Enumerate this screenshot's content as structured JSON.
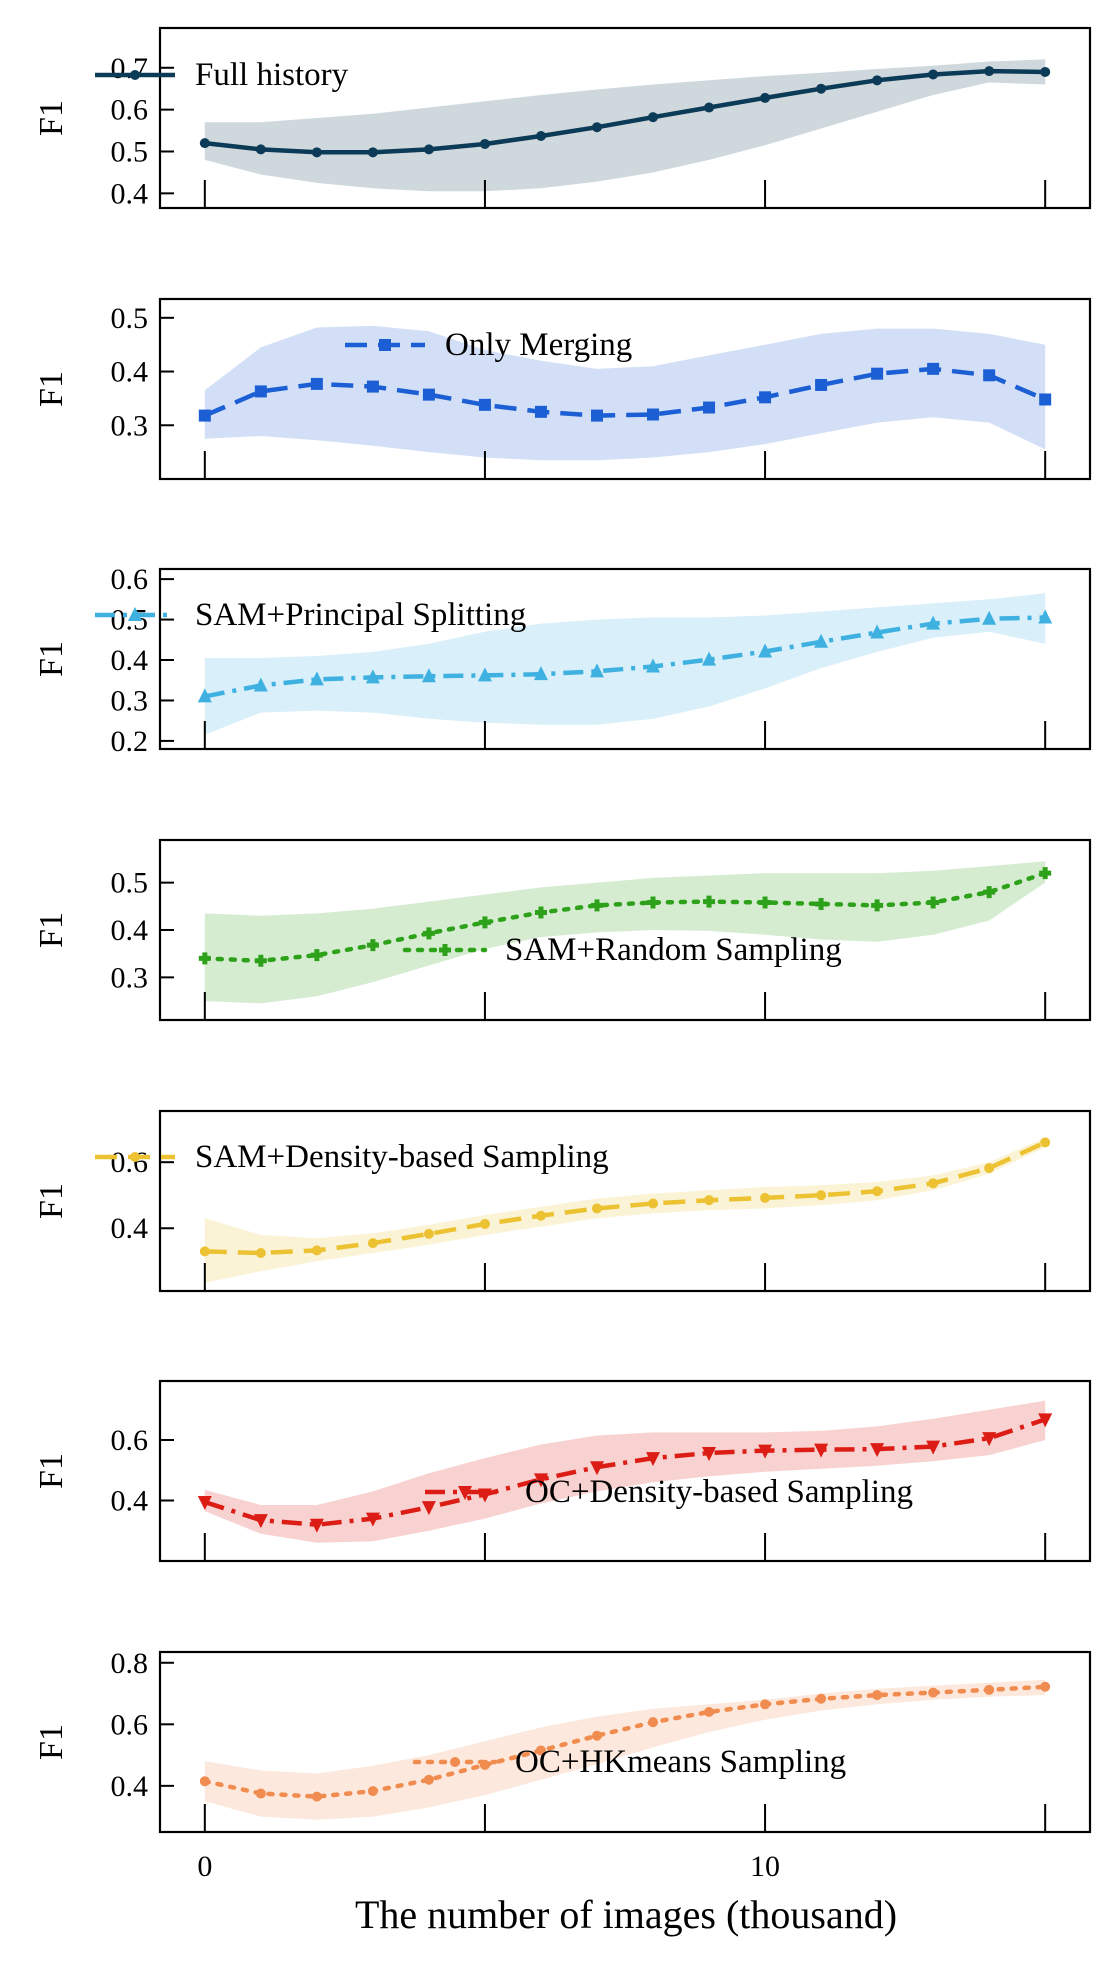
{
  "figure": {
    "xlabel": "The number of images (thousand)",
    "ylabel": "F1"
  },
  "chart_data": [
    {
      "type": "line",
      "series": [
        {
          "name": "Full history",
          "color": "#0c3b57",
          "marker": "circle",
          "linestyle": "solid"
        }
      ],
      "x": [
        0,
        1,
        2,
        3,
        4,
        5,
        6,
        7,
        8,
        9,
        10,
        11,
        12,
        13,
        14,
        15
      ],
      "values": [
        0.52,
        0.505,
        0.498,
        0.498,
        0.505,
        0.518,
        0.537,
        0.558,
        0.582,
        0.605,
        0.628,
        0.65,
        0.67,
        0.684,
        0.692,
        0.69
      ],
      "lower": [
        0.48,
        0.445,
        0.425,
        0.412,
        0.405,
        0.405,
        0.412,
        0.428,
        0.45,
        0.48,
        0.515,
        0.555,
        0.595,
        0.635,
        0.665,
        0.66
      ],
      "upper": [
        0.57,
        0.57,
        0.58,
        0.59,
        0.605,
        0.62,
        0.635,
        0.648,
        0.66,
        0.67,
        0.68,
        0.688,
        0.697,
        0.705,
        0.715,
        0.72
      ],
      "xlim": [
        -0.8,
        15.8
      ],
      "ylim": [
        0.365,
        0.795
      ],
      "yticks": [
        0.4,
        0.5,
        0.6,
        0.7
      ],
      "ytick_labels": [
        "0.4",
        "0.5",
        "0.6",
        "0.7"
      ],
      "legend": "top-left"
    },
    {
      "type": "line",
      "series": [
        {
          "name": "Only Merging",
          "color": "#1c5fd4",
          "marker": "square",
          "linestyle": "dashed"
        }
      ],
      "x": [
        0,
        1,
        2,
        3,
        4,
        5,
        6,
        7,
        8,
        9,
        10,
        11,
        12,
        13,
        14,
        15
      ],
      "values": [
        0.318,
        0.363,
        0.377,
        0.372,
        0.357,
        0.338,
        0.325,
        0.318,
        0.32,
        0.333,
        0.352,
        0.375,
        0.396,
        0.405,
        0.393,
        0.348
      ],
      "lower": [
        0.275,
        0.28,
        0.272,
        0.262,
        0.25,
        0.24,
        0.235,
        0.235,
        0.24,
        0.25,
        0.265,
        0.285,
        0.305,
        0.315,
        0.305,
        0.255
      ],
      "upper": [
        0.365,
        0.445,
        0.482,
        0.485,
        0.475,
        0.44,
        0.42,
        0.405,
        0.41,
        0.43,
        0.45,
        0.47,
        0.48,
        0.48,
        0.47,
        0.45
      ],
      "xlim": [
        -0.8,
        15.8
      ],
      "ylim": [
        0.2,
        0.535
      ],
      "yticks": [
        0.3,
        0.4,
        0.5
      ],
      "ytick_labels": [
        "0.3",
        "0.4",
        "0.5"
      ],
      "legend": "top-center"
    },
    {
      "type": "line",
      "series": [
        {
          "name": "SAM+Principal Splitting",
          "color": "#3fb1e0",
          "marker": "triangle-up",
          "linestyle": "dashdot"
        }
      ],
      "x": [
        0,
        1,
        2,
        3,
        4,
        5,
        6,
        7,
        8,
        9,
        10,
        11,
        12,
        13,
        14,
        15
      ],
      "values": [
        0.31,
        0.337,
        0.352,
        0.357,
        0.36,
        0.362,
        0.365,
        0.372,
        0.384,
        0.401,
        0.421,
        0.445,
        0.468,
        0.49,
        0.502,
        0.505
      ],
      "lower": [
        0.215,
        0.27,
        0.275,
        0.27,
        0.255,
        0.245,
        0.24,
        0.24,
        0.255,
        0.285,
        0.33,
        0.38,
        0.42,
        0.455,
        0.47,
        0.44
      ],
      "upper": [
        0.405,
        0.405,
        0.41,
        0.42,
        0.44,
        0.47,
        0.49,
        0.5,
        0.505,
        0.505,
        0.51,
        0.52,
        0.53,
        0.54,
        0.55,
        0.565
      ],
      "xlim": [
        -0.8,
        15.8
      ],
      "ylim": [
        0.18,
        0.625
      ],
      "yticks": [
        0.2,
        0.3,
        0.4,
        0.5,
        0.6
      ],
      "ytick_labels": [
        "0.2",
        "0.3",
        "0.4",
        "0.5",
        "0.6"
      ],
      "legend": "top-left"
    },
    {
      "type": "line",
      "series": [
        {
          "name": "SAM+Random Sampling",
          "color": "#2ea11a",
          "marker": "plus",
          "linestyle": "dotted"
        }
      ],
      "x": [
        0,
        1,
        2,
        3,
        4,
        5,
        6,
        7,
        8,
        9,
        10,
        11,
        12,
        13,
        14,
        15
      ],
      "values": [
        0.34,
        0.335,
        0.347,
        0.368,
        0.393,
        0.416,
        0.437,
        0.452,
        0.458,
        0.46,
        0.458,
        0.455,
        0.452,
        0.458,
        0.48,
        0.52
      ],
      "lower": [
        0.25,
        0.245,
        0.26,
        0.29,
        0.325,
        0.36,
        0.385,
        0.395,
        0.4,
        0.398,
        0.39,
        0.38,
        0.375,
        0.39,
        0.42,
        0.5
      ],
      "upper": [
        0.435,
        0.43,
        0.435,
        0.445,
        0.46,
        0.475,
        0.49,
        0.5,
        0.51,
        0.515,
        0.52,
        0.52,
        0.52,
        0.525,
        0.535,
        0.545
      ],
      "xlim": [
        -0.8,
        15.8
      ],
      "ylim": [
        0.21,
        0.59
      ],
      "yticks": [
        0.3,
        0.4,
        0.5
      ],
      "ytick_labels": [
        "0.3",
        "0.4",
        "0.5"
      ],
      "legend": "bottom-right"
    },
    {
      "type": "line",
      "series": [
        {
          "name": "SAM+Density-based Sampling",
          "color": "#ecc232",
          "marker": "circle",
          "linestyle": "dashed"
        }
      ],
      "x": [
        0,
        1,
        2,
        3,
        4,
        5,
        6,
        7,
        8,
        9,
        10,
        11,
        12,
        13,
        14,
        15
      ],
      "values": [
        0.33,
        0.325,
        0.333,
        0.355,
        0.383,
        0.413,
        0.438,
        0.46,
        0.475,
        0.485,
        0.492,
        0.5,
        0.512,
        0.536,
        0.582,
        0.66
      ],
      "lower": [
        0.235,
        0.27,
        0.3,
        0.325,
        0.35,
        0.38,
        0.405,
        0.43,
        0.445,
        0.455,
        0.46,
        0.47,
        0.485,
        0.515,
        0.565,
        0.645
      ],
      "upper": [
        0.43,
        0.38,
        0.37,
        0.385,
        0.41,
        0.44,
        0.465,
        0.49,
        0.505,
        0.515,
        0.525,
        0.53,
        0.54,
        0.56,
        0.6,
        0.675
      ],
      "xlim": [
        -0.8,
        15.8
      ],
      "ylim": [
        0.21,
        0.755
      ],
      "yticks": [
        0.4,
        0.6
      ],
      "ytick_labels": [
        "0.4",
        "0.6"
      ],
      "legend": "top-left"
    },
    {
      "type": "line",
      "series": [
        {
          "name": "OC+Density-based Sampling",
          "color": "#dc1d16",
          "marker": "triangle-down",
          "linestyle": "dashdot"
        }
      ],
      "x": [
        0,
        1,
        2,
        3,
        4,
        5,
        6,
        7,
        8,
        9,
        10,
        11,
        12,
        13,
        14,
        15
      ],
      "values": [
        0.395,
        0.335,
        0.32,
        0.34,
        0.378,
        0.42,
        0.47,
        0.51,
        0.54,
        0.557,
        0.565,
        0.568,
        0.57,
        0.578,
        0.606,
        0.668
      ],
      "lower": [
        0.365,
        0.29,
        0.26,
        0.265,
        0.3,
        0.34,
        0.39,
        0.43,
        0.46,
        0.48,
        0.495,
        0.505,
        0.515,
        0.53,
        0.55,
        0.6
      ],
      "upper": [
        0.435,
        0.385,
        0.385,
        0.43,
        0.49,
        0.54,
        0.585,
        0.615,
        0.625,
        0.625,
        0.625,
        0.63,
        0.645,
        0.67,
        0.7,
        0.73
      ],
      "xlim": [
        -0.8,
        15.8
      ],
      "ylim": [
        0.2,
        0.795
      ],
      "yticks": [
        0.4,
        0.6
      ],
      "ytick_labels": [
        "0.4",
        "0.6"
      ],
      "legend": "bottom-right"
    },
    {
      "type": "line",
      "series": [
        {
          "name": "OC+HKmeans Sampling",
          "color": "#f08c50",
          "marker": "circle",
          "linestyle": "dotted"
        }
      ],
      "x": [
        0,
        1,
        2,
        3,
        4,
        5,
        6,
        7,
        8,
        9,
        10,
        11,
        12,
        13,
        14,
        15
      ],
      "values": [
        0.415,
        0.375,
        0.365,
        0.383,
        0.42,
        0.468,
        0.515,
        0.563,
        0.607,
        0.64,
        0.665,
        0.683,
        0.695,
        0.703,
        0.712,
        0.722
      ],
      "lower": [
        0.35,
        0.3,
        0.29,
        0.3,
        0.33,
        0.37,
        0.42,
        0.47,
        0.525,
        0.575,
        0.615,
        0.645,
        0.665,
        0.68,
        0.69,
        0.695
      ],
      "upper": [
        0.48,
        0.45,
        0.44,
        0.465,
        0.5,
        0.545,
        0.59,
        0.625,
        0.65,
        0.665,
        0.68,
        0.7,
        0.715,
        0.725,
        0.735,
        0.745
      ],
      "xlim": [
        -0.8,
        15.8
      ],
      "ylim": [
        0.25,
        0.835
      ],
      "yticks": [
        0.4,
        0.6,
        0.8
      ],
      "ytick_labels": [
        "0.4",
        "0.6",
        "0.8"
      ],
      "legend": "bottom-right"
    }
  ],
  "shared_xaxis": {
    "ticks": [
      0,
      5,
      10,
      15
    ],
    "labeled_ticks": [
      0,
      10
    ],
    "tick_labels": [
      "0",
      "10"
    ]
  }
}
